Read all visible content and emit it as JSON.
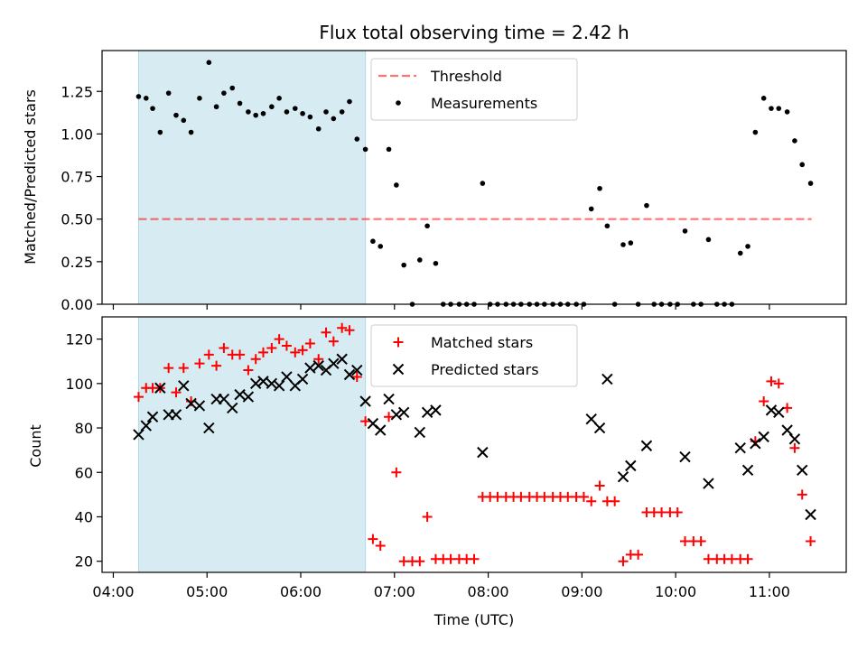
{
  "chart_data": [
    {
      "type": "scatter",
      "title": "Flux total observing time = 2.42 h",
      "xlabel": "",
      "ylabel": "Matched/Predicted stars",
      "x_unit": "hours (UTC)",
      "xlim": [
        3.88,
        11.82
      ],
      "ylim": [
        0,
        1.49
      ],
      "yticks": [
        "0.00",
        "0.25",
        "0.50",
        "0.75",
        "1.00",
        "1.25"
      ],
      "ytick_values": [
        0,
        0.25,
        0.5,
        0.75,
        1.0,
        1.25
      ],
      "highlight_span": [
        4.27,
        6.69
      ],
      "highlight_color": "#add8e6",
      "legend_position": "top-center",
      "threshold": {
        "name": "Threshold",
        "value": 0.5,
        "x_range": [
          4.27,
          11.45
        ],
        "color": "#ff0000",
        "style": "dashed"
      },
      "series": [
        {
          "name": "Measurements",
          "color": "#000000",
          "marker": "dot",
          "points": [
            [
              4.27,
              1.22
            ],
            [
              4.35,
              1.21
            ],
            [
              4.42,
              1.15
            ],
            [
              4.5,
              1.01
            ],
            [
              4.59,
              1.24
            ],
            [
              4.67,
              1.11
            ],
            [
              4.75,
              1.08
            ],
            [
              4.83,
              1.01
            ],
            [
              4.92,
              1.21
            ],
            [
              5.02,
              1.42
            ],
            [
              5.1,
              1.16
            ],
            [
              5.18,
              1.24
            ],
            [
              5.27,
              1.27
            ],
            [
              5.35,
              1.18
            ],
            [
              5.44,
              1.13
            ],
            [
              5.52,
              1.11
            ],
            [
              5.6,
              1.12
            ],
            [
              5.69,
              1.16
            ],
            [
              5.77,
              1.21
            ],
            [
              5.85,
              1.13
            ],
            [
              5.94,
              1.15
            ],
            [
              6.02,
              1.12
            ],
            [
              6.1,
              1.1
            ],
            [
              6.19,
              1.03
            ],
            [
              6.27,
              1.13
            ],
            [
              6.35,
              1.09
            ],
            [
              6.44,
              1.13
            ],
            [
              6.52,
              1.19
            ],
            [
              6.6,
              0.97
            ],
            [
              6.69,
              0.91
            ],
            [
              6.77,
              0.37
            ],
            [
              6.85,
              0.34
            ],
            [
              6.94,
              0.91
            ],
            [
              7.02,
              0.7
            ],
            [
              7.1,
              0.23
            ],
            [
              7.19,
              0.0
            ],
            [
              7.27,
              0.26
            ],
            [
              7.35,
              0.46
            ],
            [
              7.44,
              0.24
            ],
            [
              7.52,
              0.0
            ],
            [
              7.6,
              0.0
            ],
            [
              7.69,
              0.0
            ],
            [
              7.77,
              0.0
            ],
            [
              7.85,
              0.0
            ],
            [
              7.94,
              0.71
            ],
            [
              8.02,
              0.0
            ],
            [
              8.1,
              0.0
            ],
            [
              8.19,
              0.0
            ],
            [
              8.27,
              0.0
            ],
            [
              8.35,
              0.0
            ],
            [
              8.44,
              0.0
            ],
            [
              8.52,
              0.0
            ],
            [
              8.6,
              0.0
            ],
            [
              8.69,
              0.0
            ],
            [
              8.77,
              0.0
            ],
            [
              8.85,
              0.0
            ],
            [
              8.94,
              0.0
            ],
            [
              9.02,
              0.0
            ],
            [
              9.1,
              0.56
            ],
            [
              9.19,
              0.68
            ],
            [
              9.27,
              0.46
            ],
            [
              9.35,
              0.0
            ],
            [
              9.44,
              0.35
            ],
            [
              9.52,
              0.36
            ],
            [
              9.6,
              0.0
            ],
            [
              9.69,
              0.58
            ],
            [
              9.77,
              0.0
            ],
            [
              9.85,
              0.0
            ],
            [
              9.94,
              0.0
            ],
            [
              10.02,
              0.0
            ],
            [
              10.1,
              0.43
            ],
            [
              10.19,
              0.0
            ],
            [
              10.27,
              0.0
            ],
            [
              10.35,
              0.38
            ],
            [
              10.44,
              0.0
            ],
            [
              10.52,
              0.0
            ],
            [
              10.6,
              0.0
            ],
            [
              10.69,
              0.3
            ],
            [
              10.77,
              0.34
            ],
            [
              10.85,
              1.01
            ],
            [
              10.94,
              1.21
            ],
            [
              11.02,
              1.15
            ],
            [
              11.1,
              1.15
            ],
            [
              11.19,
              1.13
            ],
            [
              11.27,
              0.96
            ],
            [
              11.35,
              0.82
            ],
            [
              11.44,
              0.71
            ]
          ]
        }
      ]
    },
    {
      "type": "scatter",
      "title": "",
      "xlabel": "Time (UTC)",
      "ylabel": "Count",
      "x_unit": "hours (UTC)",
      "xlim": [
        3.88,
        11.82
      ],
      "ylim": [
        15,
        130
      ],
      "yticks": [
        "20",
        "40",
        "60",
        "80",
        "100",
        "120"
      ],
      "ytick_values": [
        20,
        40,
        60,
        80,
        100,
        120
      ],
      "xticks": [
        "04:00",
        "05:00",
        "06:00",
        "07:00",
        "08:00",
        "09:00",
        "10:00",
        "11:00"
      ],
      "xtick_values": [
        4,
        5,
        6,
        7,
        8,
        9,
        10,
        11
      ],
      "highlight_span": [
        4.27,
        6.69
      ],
      "highlight_color": "#add8e6",
      "legend_position": "top-center",
      "series": [
        {
          "name": "Matched stars",
          "color": "#ff0000",
          "marker": "plus",
          "points": [
            [
              4.27,
              94
            ],
            [
              4.35,
              98
            ],
            [
              4.42,
              98
            ],
            [
              4.5,
              98
            ],
            [
              4.59,
              107
            ],
            [
              4.67,
              96
            ],
            [
              4.75,
              107
            ],
            [
              4.83,
              92
            ],
            [
              4.92,
              109
            ],
            [
              5.02,
              113
            ],
            [
              5.1,
              108
            ],
            [
              5.18,
              116
            ],
            [
              5.27,
              113
            ],
            [
              5.35,
              113
            ],
            [
              5.44,
              106
            ],
            [
              5.52,
              111
            ],
            [
              5.6,
              114
            ],
            [
              5.69,
              116
            ],
            [
              5.77,
              120
            ],
            [
              5.85,
              117
            ],
            [
              5.94,
              114
            ],
            [
              6.02,
              115
            ],
            [
              6.1,
              118
            ],
            [
              6.19,
              111
            ],
            [
              6.27,
              123
            ],
            [
              6.35,
              119
            ],
            [
              6.44,
              125
            ],
            [
              6.52,
              124
            ],
            [
              6.6,
              103
            ],
            [
              6.69,
              83
            ],
            [
              6.77,
              30
            ],
            [
              6.85,
              27
            ],
            [
              6.94,
              85
            ],
            [
              7.02,
              60
            ],
            [
              7.1,
              20
            ],
            [
              7.19,
              20
            ],
            [
              7.27,
              20
            ],
            [
              7.35,
              40
            ],
            [
              7.44,
              21
            ],
            [
              7.52,
              21
            ],
            [
              7.6,
              21
            ],
            [
              7.69,
              21
            ],
            [
              7.77,
              21
            ],
            [
              7.85,
              21
            ],
            [
              7.94,
              49
            ],
            [
              8.02,
              49
            ],
            [
              8.1,
              49
            ],
            [
              8.19,
              49
            ],
            [
              8.27,
              49
            ],
            [
              8.35,
              49
            ],
            [
              8.44,
              49
            ],
            [
              8.52,
              49
            ],
            [
              8.6,
              49
            ],
            [
              8.69,
              49
            ],
            [
              8.77,
              49
            ],
            [
              8.85,
              49
            ],
            [
              8.94,
              49
            ],
            [
              9.02,
              49
            ],
            [
              9.1,
              47
            ],
            [
              9.19,
              54
            ],
            [
              9.27,
              47
            ],
            [
              9.35,
              47
            ],
            [
              9.44,
              20
            ],
            [
              9.52,
              23
            ],
            [
              9.6,
              23
            ],
            [
              9.69,
              42
            ],
            [
              9.77,
              42
            ],
            [
              9.85,
              42
            ],
            [
              9.94,
              42
            ],
            [
              10.02,
              42
            ],
            [
              10.1,
              29
            ],
            [
              10.19,
              29
            ],
            [
              10.27,
              29
            ],
            [
              10.35,
              21
            ],
            [
              10.44,
              21
            ],
            [
              10.52,
              21
            ],
            [
              10.6,
              21
            ],
            [
              10.69,
              21
            ],
            [
              10.77,
              21
            ],
            [
              10.85,
              74
            ],
            [
              10.94,
              92
            ],
            [
              11.02,
              101
            ],
            [
              11.1,
              100
            ],
            [
              11.19,
              89
            ],
            [
              11.27,
              71
            ],
            [
              11.35,
              50
            ],
            [
              11.44,
              29
            ]
          ]
        },
        {
          "name": "Predicted stars",
          "color": "#000000",
          "marker": "x",
          "points": [
            [
              4.27,
              77
            ],
            [
              4.35,
              81
            ],
            [
              4.42,
              85
            ],
            [
              4.5,
              98
            ],
            [
              4.59,
              86
            ],
            [
              4.67,
              86
            ],
            [
              4.75,
              99
            ],
            [
              4.83,
              91
            ],
            [
              4.92,
              90
            ],
            [
              5.02,
              80
            ],
            [
              5.1,
              93
            ],
            [
              5.18,
              93
            ],
            [
              5.27,
              89
            ],
            [
              5.35,
              95
            ],
            [
              5.44,
              94
            ],
            [
              5.52,
              100
            ],
            [
              5.6,
              101
            ],
            [
              5.69,
              100
            ],
            [
              5.77,
              99
            ],
            [
              5.85,
              103
            ],
            [
              5.94,
              99
            ],
            [
              6.02,
              102
            ],
            [
              6.1,
              107
            ],
            [
              6.19,
              108
            ],
            [
              6.27,
              106
            ],
            [
              6.35,
              109
            ],
            [
              6.44,
              111
            ],
            [
              6.52,
              104
            ],
            [
              6.6,
              106
            ],
            [
              6.69,
              92
            ],
            [
              6.77,
              82
            ],
            [
              6.85,
              79
            ],
            [
              6.94,
              93
            ],
            [
              7.02,
              86
            ],
            [
              7.1,
              87
            ],
            [
              7.27,
              78
            ],
            [
              7.35,
              87
            ],
            [
              7.44,
              88
            ],
            [
              7.94,
              69
            ],
            [
              9.1,
              84
            ],
            [
              9.19,
              80
            ],
            [
              9.27,
              102
            ],
            [
              9.44,
              58
            ],
            [
              9.52,
              63
            ],
            [
              9.69,
              72
            ],
            [
              10.1,
              67
            ],
            [
              10.35,
              55
            ],
            [
              10.69,
              71
            ],
            [
              10.77,
              61
            ],
            [
              10.85,
              73
            ],
            [
              10.94,
              76
            ],
            [
              11.02,
              88
            ],
            [
              11.1,
              87
            ],
            [
              11.19,
              79
            ],
            [
              11.27,
              75
            ],
            [
              11.35,
              61
            ],
            [
              11.44,
              41
            ]
          ]
        }
      ]
    }
  ]
}
